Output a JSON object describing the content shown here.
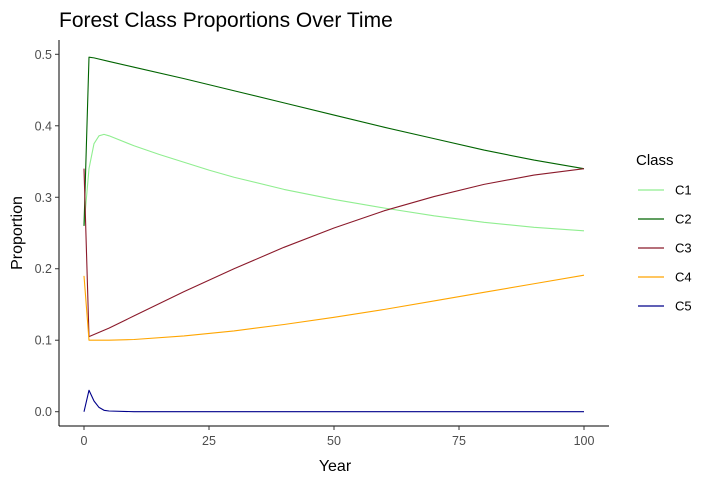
{
  "chart_data": {
    "type": "line",
    "title": "Forest Class Proportions Over Time",
    "xlabel": "Year",
    "ylabel": "Proportion",
    "xlim": [
      -5,
      105
    ],
    "ylim": [
      -0.02,
      0.52
    ],
    "xticks": [
      0,
      25,
      50,
      75,
      100
    ],
    "yticks": [
      0.0,
      0.1,
      0.2,
      0.3,
      0.4,
      0.5
    ],
    "grid": false,
    "legend": {
      "title": "Class",
      "position": "right"
    },
    "series": [
      {
        "name": "C1",
        "color": "#90EE90",
        "x": [
          0,
          1,
          2,
          3,
          4,
          5,
          10,
          15,
          20,
          25,
          30,
          40,
          50,
          60,
          70,
          80,
          90,
          100
        ],
        "y": [
          0.26,
          0.34,
          0.375,
          0.386,
          0.388,
          0.386,
          0.372,
          0.36,
          0.349,
          0.338,
          0.328,
          0.311,
          0.297,
          0.285,
          0.274,
          0.265,
          0.258,
          0.253
        ]
      },
      {
        "name": "C2",
        "color": "#006400",
        "x": [
          0,
          1,
          2,
          5,
          10,
          20,
          30,
          40,
          50,
          60,
          70,
          80,
          90,
          100
        ],
        "y": [
          0.26,
          0.496,
          0.495,
          0.49,
          0.482,
          0.466,
          0.449,
          0.432,
          0.415,
          0.398,
          0.382,
          0.366,
          0.352,
          0.34
        ]
      },
      {
        "name": "C3",
        "color": "#8B1A2B",
        "x": [
          0,
          1,
          5,
          10,
          20,
          30,
          40,
          50,
          60,
          70,
          80,
          90,
          100
        ],
        "y": [
          0.34,
          0.105,
          0.117,
          0.134,
          0.168,
          0.2,
          0.23,
          0.257,
          0.281,
          0.301,
          0.318,
          0.331,
          0.34
        ]
      },
      {
        "name": "C4",
        "color": "#FFA500",
        "x": [
          0,
          1,
          2,
          5,
          10,
          20,
          30,
          40,
          50,
          60,
          70,
          80,
          90,
          100
        ],
        "y": [
          0.19,
          0.1,
          0.1,
          0.1,
          0.101,
          0.106,
          0.113,
          0.122,
          0.132,
          0.143,
          0.155,
          0.167,
          0.179,
          0.191
        ]
      },
      {
        "name": "C5",
        "color": "#00008B",
        "x": [
          0,
          1,
          2,
          3,
          4,
          5,
          10,
          25,
          50,
          75,
          100
        ],
        "y": [
          0.0,
          0.03,
          0.015,
          0.006,
          0.002,
          0.001,
          0.0,
          0.0,
          0.0,
          0.0,
          0.0
        ]
      }
    ]
  }
}
